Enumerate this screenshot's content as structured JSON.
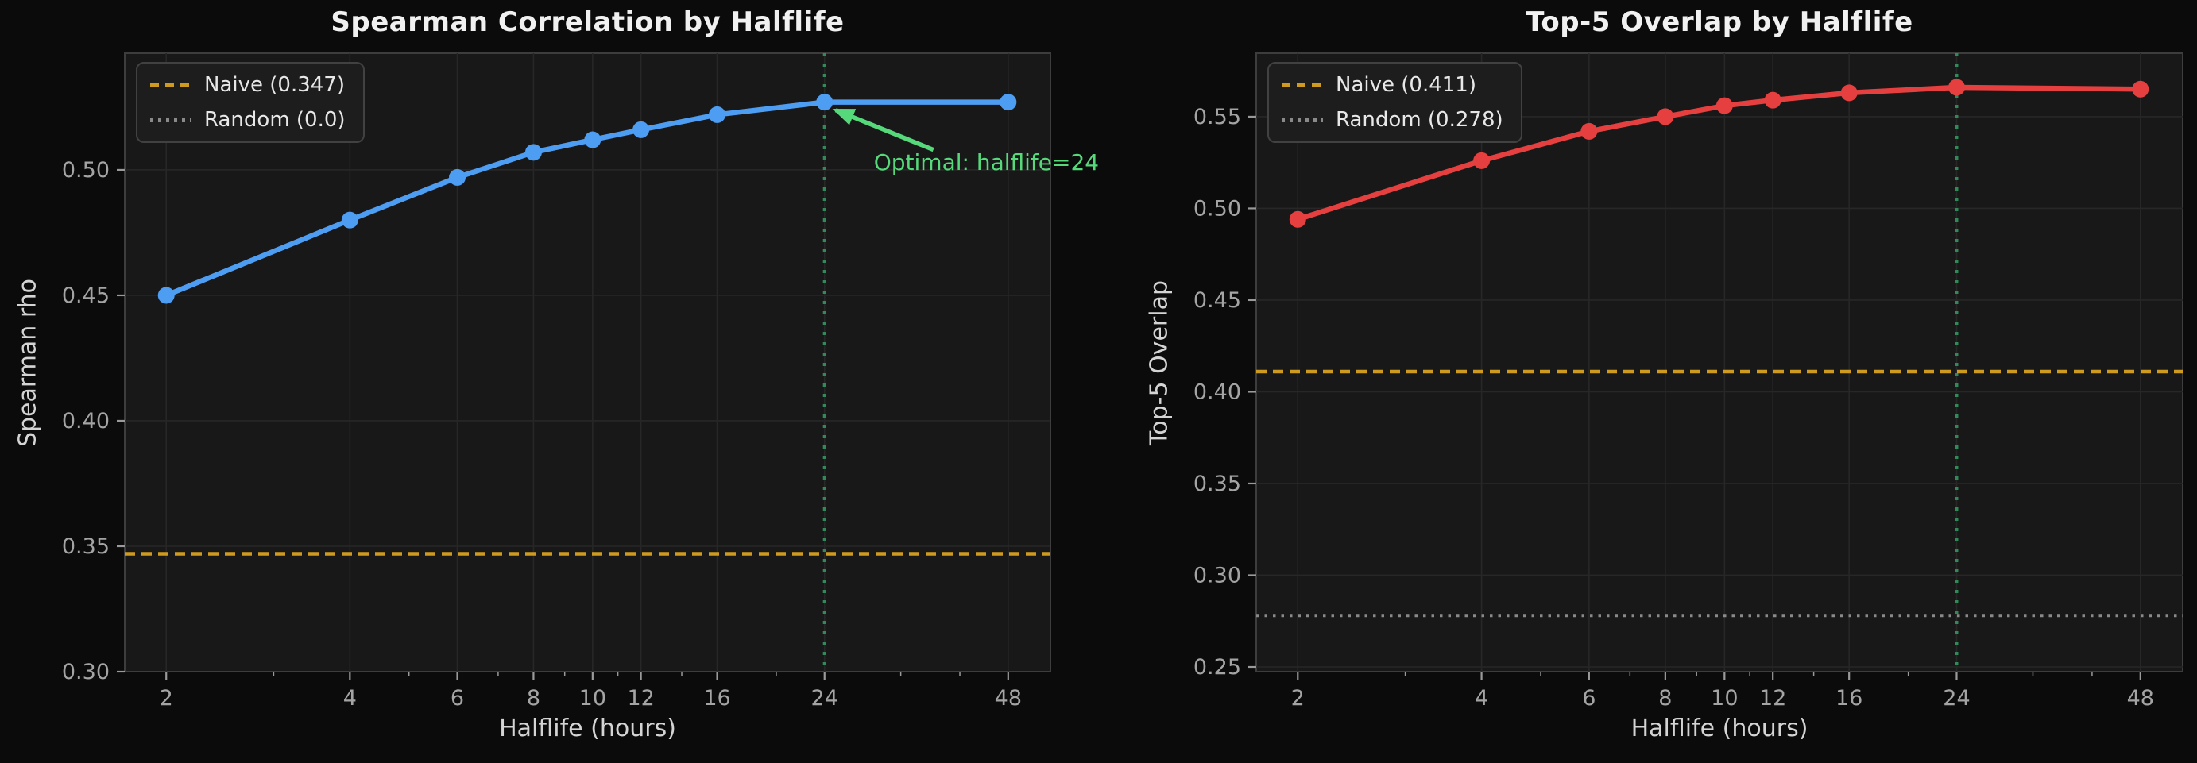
{
  "figure": {
    "background": "#0b0b0b",
    "axes_background": "#181818",
    "grid_color": "#272727",
    "spine_color": "#3d3d3d",
    "tick_color": "#9a9a9a",
    "tick_label_color": "#a4a4a4"
  },
  "chart_data": [
    {
      "type": "line",
      "title": "Spearman Correlation by Halflife",
      "xlabel": "Halflife (hours)",
      "ylabel": "Spearman rho",
      "x_scale": "log2",
      "x": [
        2,
        4,
        6,
        8,
        10,
        12,
        16,
        24,
        48
      ],
      "series": [
        {
          "name": "Spearman rho",
          "color": "#4d9df3",
          "values": [
            0.45,
            0.48,
            0.497,
            0.507,
            0.512,
            0.516,
            0.522,
            0.527,
            0.527
          ]
        }
      ],
      "xlim": [
        1.71,
        56.3
      ],
      "ylim": [
        0.3,
        0.5465
      ],
      "yticks": [
        0.3,
        0.35,
        0.4,
        0.45,
        0.5
      ],
      "ytick_labels": [
        "0.30",
        "0.35",
        "0.40",
        "0.45",
        "0.50"
      ],
      "xticks": [
        2,
        4,
        6,
        8,
        10,
        12,
        16,
        24,
        48
      ],
      "xtick_labels": [
        "2",
        "4",
        "6",
        "8",
        "10",
        "12",
        "16",
        "24",
        "48"
      ],
      "minor_xticks": [
        3,
        5,
        7,
        9,
        11,
        14,
        20,
        32,
        40
      ],
      "grid": true,
      "legend_position": "upper left",
      "reference_lines": [
        {
          "label": "Naive (0.347)",
          "value": 0.347,
          "style": "dashed",
          "color": "#cf9b1e"
        },
        {
          "label": "Random (0.0)",
          "value": 0.0,
          "style": "dotted",
          "color": "#8a8a8a"
        }
      ],
      "vline": {
        "x": 24,
        "style": "dotted",
        "color": "#2f8b57"
      },
      "annotation": {
        "text": "Optimal: halflife=24",
        "x": 24,
        "y": 0.527,
        "color": "#55d97a"
      }
    },
    {
      "type": "line",
      "title": "Top-5 Overlap by Halflife",
      "xlabel": "Halflife (hours)",
      "ylabel": "Top-5 Overlap",
      "x_scale": "log2",
      "x": [
        2,
        4,
        6,
        8,
        10,
        12,
        16,
        24,
        48
      ],
      "series": [
        {
          "name": "Top-5 Overlap",
          "color": "#e5403f",
          "values": [
            0.494,
            0.526,
            0.542,
            0.55,
            0.556,
            0.559,
            0.563,
            0.566,
            0.565
          ]
        }
      ],
      "xlim": [
        1.71,
        56.3
      ],
      "ylim": [
        0.2474,
        0.5846
      ],
      "yticks": [
        0.25,
        0.3,
        0.35,
        0.4,
        0.45,
        0.5,
        0.55
      ],
      "ytick_labels": [
        "0.25",
        "0.30",
        "0.35",
        "0.40",
        "0.45",
        "0.50",
        "0.55"
      ],
      "xticks": [
        2,
        4,
        6,
        8,
        10,
        12,
        16,
        24,
        48
      ],
      "xtick_labels": [
        "2",
        "4",
        "6",
        "8",
        "10",
        "12",
        "16",
        "24",
        "48"
      ],
      "minor_xticks": [
        3,
        5,
        7,
        9,
        11,
        14,
        20,
        32,
        40
      ],
      "grid": true,
      "legend_position": "upper left",
      "reference_lines": [
        {
          "label": "Naive (0.411)",
          "value": 0.411,
          "style": "dashed",
          "color": "#cf9b1e"
        },
        {
          "label": "Random (0.278)",
          "value": 0.278,
          "style": "dotted",
          "color": "#8a8a8a"
        }
      ],
      "vline": {
        "x": 24,
        "style": "dotted",
        "color": "#2f8b57"
      },
      "annotation": null
    }
  ]
}
